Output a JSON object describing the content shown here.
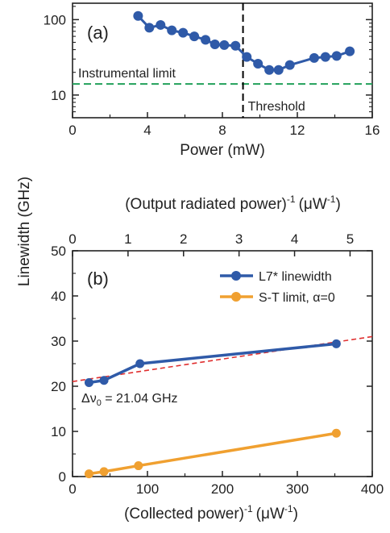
{
  "figure": {
    "shared_ylabel": "Linewidth (GHz)"
  },
  "chart_data": [
    {
      "type": "line",
      "panel_label": "(a)",
      "xlabel": "Power (mW)",
      "ylabel": "Linewidth (GHz)",
      "xlim": [
        0,
        16
      ],
      "ylim": [
        5,
        165
      ],
      "yscale": "log",
      "x_ticks": [
        0,
        4,
        8,
        12,
        16
      ],
      "x_tick_labels": [
        "0",
        "4",
        "8",
        "12",
        "16"
      ],
      "y_ticks": [
        10,
        100
      ],
      "y_tick_labels": [
        "10",
        "100"
      ],
      "grid": false,
      "series": [
        {
          "color": "#2f5aa8",
          "x": [
            3.5,
            4.1,
            4.7,
            5.3,
            5.9,
            6.5,
            7.1,
            7.6,
            8.1,
            8.7,
            9.3,
            9.9,
            10.5,
            11.0,
            11.6,
            12.9,
            13.5,
            14.1,
            14.8
          ],
          "y": [
            112,
            78,
            85,
            72,
            67,
            60,
            54,
            47,
            46,
            45,
            32,
            26,
            21.5,
            21.5,
            25,
            31,
            32,
            33,
            38
          ]
        }
      ],
      "annotations": [
        {
          "text": "Instrumental limit",
          "type": "hline",
          "y": 14,
          "color": "#22a05a"
        },
        {
          "text": "Threshold",
          "type": "vline",
          "x": 9.1,
          "color": "#000000"
        }
      ]
    },
    {
      "type": "line",
      "panel_label": "(b)",
      "xlabel": "(Collected power)",
      "xlabel_exp": "-1",
      "xlabel_unit": "(μW",
      "xlabel_unit_exp": "-1",
      "xlabel_close": ")",
      "top_xlabel": "(Output radiated power)",
      "top_xlabel_exp": "-1",
      "top_xlabel_unit": "(μW",
      "top_xlabel_unit_exp": "-1",
      "top_xlabel_close": ")",
      "ylabel": "Linewidth (GHz)",
      "xlim": [
        0,
        400
      ],
      "ylim": [
        0,
        50
      ],
      "top_xlim": [
        0,
        5.4
      ],
      "x_ticks": [
        0,
        100,
        200,
        300,
        400
      ],
      "x_tick_labels": [
        "0",
        "100",
        "200",
        "300",
        "400"
      ],
      "top_x_ticks": [
        0,
        1,
        2,
        3,
        4,
        5
      ],
      "top_x_tick_labels": [
        "0",
        "1",
        "2",
        "3",
        "4",
        "5"
      ],
      "y_ticks": [
        0,
        10,
        20,
        30,
        40,
        50
      ],
      "y_tick_labels": [
        "0",
        "10",
        "20",
        "30",
        "40",
        "50"
      ],
      "grid": false,
      "legend_position": "top-right",
      "series": [
        {
          "name": "L7* linewidth",
          "color": "#2f5aa8",
          "x": [
            22,
            42,
            90,
            352
          ],
          "y": [
            20.8,
            21.3,
            25.0,
            29.4
          ]
        },
        {
          "name": "S-T limit, α=0",
          "color": "#f0a030",
          "x": [
            22,
            42,
            88,
            352
          ],
          "y": [
            0.6,
            1.1,
            2.4,
            9.6
          ]
        }
      ],
      "fit_line": {
        "color": "#e03030",
        "style": "dashed",
        "x": [
          0,
          400
        ],
        "y": [
          21.04,
          31.0
        ]
      },
      "annotations": [
        {
          "text": "Δν",
          "sub": "0",
          "rest": " = 21.04 GHz"
        }
      ]
    }
  ]
}
